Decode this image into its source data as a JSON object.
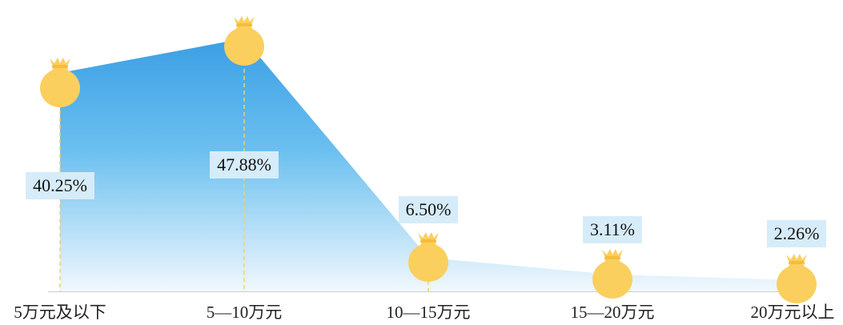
{
  "chart_data": {
    "type": "area",
    "categories": [
      "5万元及以下",
      "5—10万元",
      "10—15万元",
      "15—20万元",
      "20万元以上"
    ],
    "values": [
      40.25,
      47.88,
      6.5,
      3.11,
      2.26
    ],
    "value_labels": [
      "40.25%",
      "47.88%",
      "6.50%",
      "3.11%",
      "2.26%"
    ],
    "title": "",
    "xlabel": "",
    "ylabel": "",
    "ylim": [
      0,
      55
    ],
    "unit": "%",
    "grid": false,
    "legend": "none",
    "marker": "money-bag-icon"
  },
  "colors": {
    "area_top": "#4aaae8",
    "area_bottom": "#eef6fc",
    "marker": "#fbcf5e",
    "marker_tie": "#f5bd3a",
    "label_bg": "#d6ecf8",
    "dashed_line": "#f4cf6c",
    "axis": "#cccccc"
  }
}
